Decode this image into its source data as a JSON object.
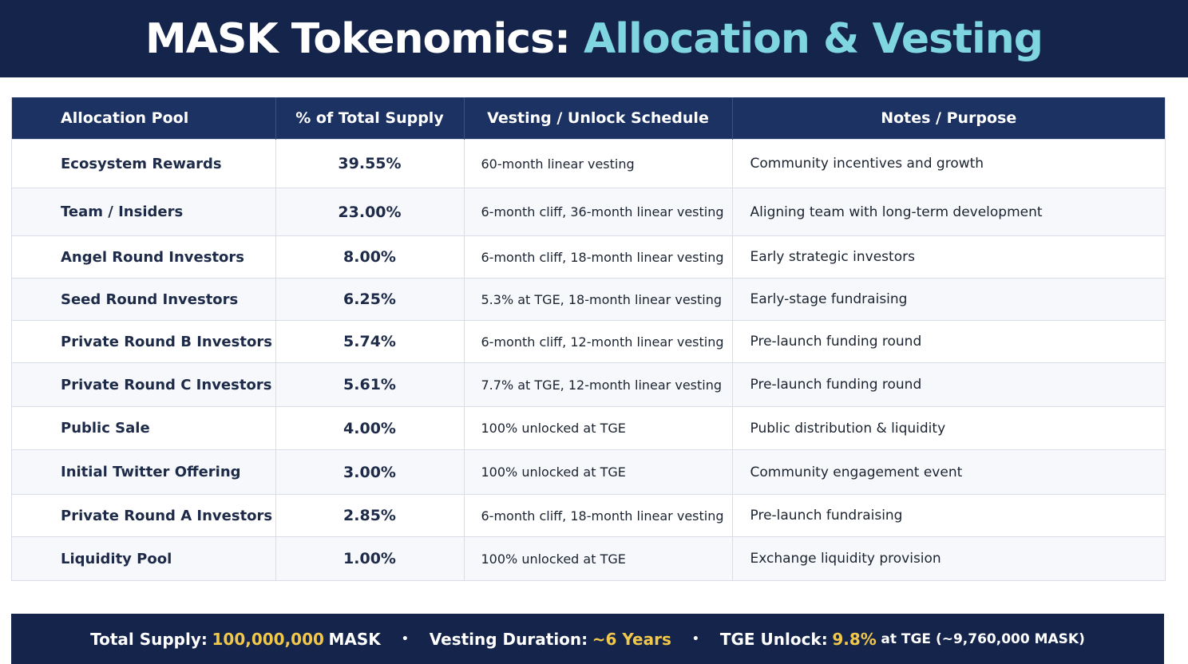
{
  "title": {
    "main": "MASK Tokenomics:",
    "accent": "Allocation & Vesting"
  },
  "table": {
    "headers": [
      "Allocation Pool",
      "% of Total Supply",
      "Vesting / Unlock Schedule",
      "Notes / Purpose"
    ],
    "rows": [
      {
        "pool": "Ecosystem Rewards",
        "pct": "39.55%",
        "vesting": "60-month linear vesting",
        "notes": "Community incentives and growth"
      },
      {
        "pool": "Team / Insiders",
        "pct": "23.00%",
        "vesting": "6-month cliff, 36-month linear vesting",
        "notes": "Aligning team with long-term development"
      },
      {
        "pool": "Angel Round Investors",
        "pct": "8.00%",
        "vesting": "6-month cliff, 18-month linear vesting",
        "notes": "Early strategic investors"
      },
      {
        "pool": "Seed Round Investors",
        "pct": "6.25%",
        "vesting": "5.3% at TGE, 18-month linear vesting",
        "notes": "Early-stage fundraising"
      },
      {
        "pool": "Private Round B Investors",
        "pct": "5.74%",
        "vesting": "6-month cliff, 12-month linear vesting",
        "notes": "Pre-launch funding round"
      },
      {
        "pool": "Private Round C Investors",
        "pct": "5.61%",
        "vesting": "7.7% at TGE, 12-month linear vesting",
        "notes": "Pre-launch funding round"
      },
      {
        "pool": "Public Sale",
        "pct": "4.00%",
        "vesting": "100% unlocked at TGE",
        "notes": "Public distribution & liquidity"
      },
      {
        "pool": "Initial Twitter Offering",
        "pct": "3.00%",
        "vesting": "100% unlocked at TGE",
        "notes": "Community engagement event"
      },
      {
        "pool": "Private Round A Investors",
        "pct": "2.85%",
        "vesting": "6-month cliff, 18-month linear vesting",
        "notes": "Pre-launch fundraising"
      },
      {
        "pool": "Liquidity Pool",
        "pct": "1.00%",
        "vesting": "100% unlocked at TGE",
        "notes": "Exchange liquidity provision"
      }
    ]
  },
  "footer": {
    "supply_label": "Total Supply:",
    "supply_value": "100,000,000",
    "supply_unit": "MASK",
    "separator": "•",
    "duration_label": "Vesting Duration:",
    "duration_value": "~6 Years",
    "tge_label": "TGE Unlock:",
    "tge_value": "9.8%",
    "tge_suffix": "at TGE (~9,760,000 MASK)"
  },
  "colors": {
    "header_bg": "#14244a",
    "table_header_bg": "#1c3262",
    "title_accent": "#7fd6e0",
    "footer_value": "#f2c84b"
  }
}
